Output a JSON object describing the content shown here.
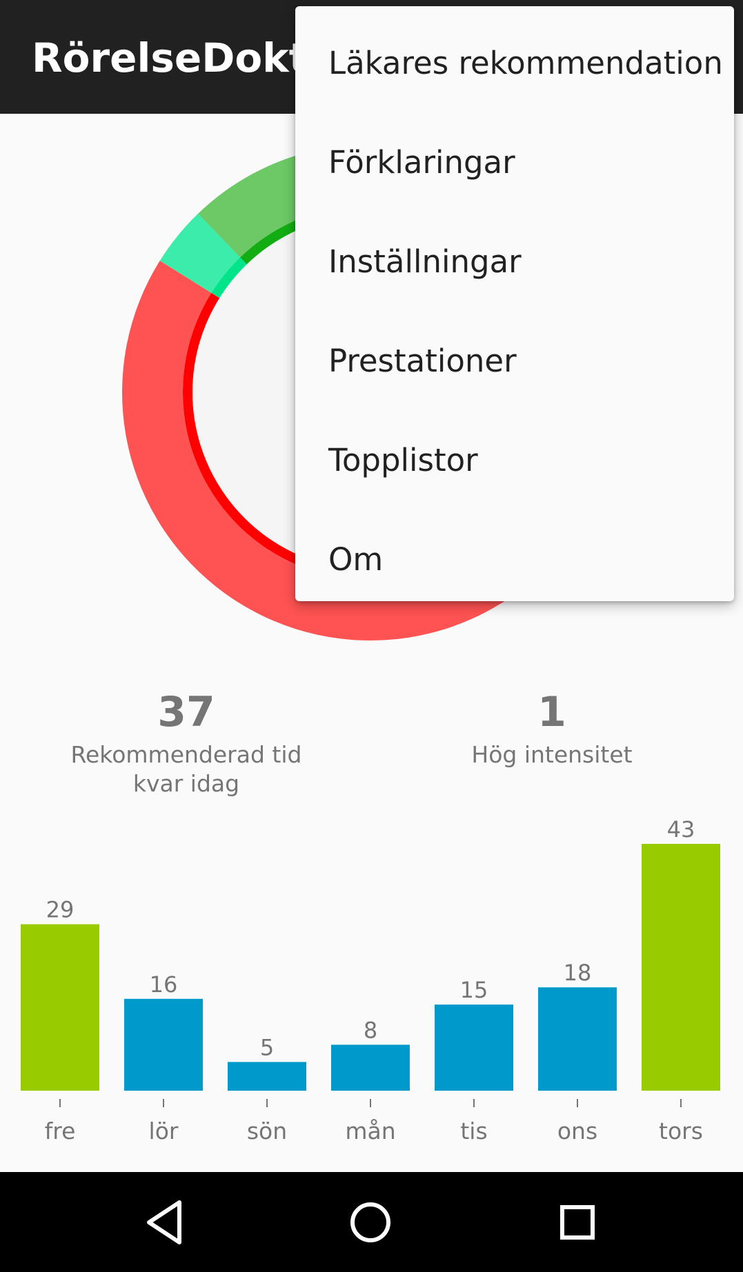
{
  "app": {
    "title": "RörelseDoktorn"
  },
  "ring": {
    "colors": {
      "red_outer": "#ff5252",
      "red_inner": "#ff0000",
      "teal_outer": "#3cecaa",
      "teal_inner": "#00e58a",
      "green_outer": "#6cc965",
      "green_inner": "#12ad12",
      "center": "#f5f5f5"
    }
  },
  "stats": {
    "remaining": {
      "value": "37",
      "label": "Rekommenderad tid kvar idag"
    },
    "high_intensity": {
      "value": "1",
      "label": "Hög intensitet"
    }
  },
  "menu": {
    "items": [
      {
        "label": "Läkares rekommendation"
      },
      {
        "label": "Förklaringar"
      },
      {
        "label": "Inställningar"
      },
      {
        "label": "Prestationer"
      },
      {
        "label": "Topplistor"
      },
      {
        "label": "Om"
      }
    ]
  },
  "chart_data": {
    "type": "bar",
    "categories": [
      "fre",
      "lör",
      "sön",
      "mån",
      "tis",
      "ons",
      "tors"
    ],
    "values": [
      29,
      16,
      5,
      8,
      15,
      18,
      43
    ],
    "highlight": [
      true,
      false,
      false,
      false,
      false,
      false,
      true
    ],
    "colors": {
      "highlight": "#99cc00",
      "normal": "#0099cc"
    },
    "title": "",
    "xlabel": "",
    "ylabel": "",
    "ylim": [
      0,
      43
    ]
  },
  "navigation": {
    "back_icon": "triangle-back-icon",
    "home_icon": "circle-home-icon",
    "recents_icon": "square-recents-icon"
  }
}
